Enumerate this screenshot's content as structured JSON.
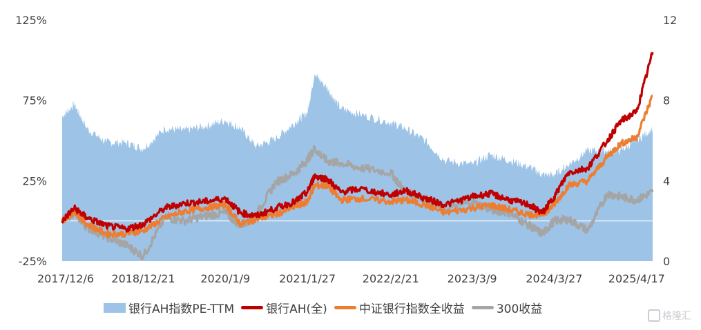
{
  "chart_data": {
    "type": "line",
    "title": "",
    "y_left_ticks": [
      "125%",
      "75%",
      "25%",
      "-25%"
    ],
    "y_left_range": [
      -25,
      125
    ],
    "y_right_ticks": [
      "12",
      "8",
      "4",
      "0"
    ],
    "y_right_range": [
      0,
      12
    ],
    "x_tick_labels": [
      "2017/12/6",
      "2018/12/21",
      "2020/1/9",
      "2021/1/27",
      "2022/2/21",
      "2023/3/9",
      "2024/3/27",
      "2025/4/17"
    ],
    "legend_position": "bottom",
    "series": [
      {
        "name": "银行AH指数PE-TTM",
        "kind": "area",
        "axis": "right",
        "color": "#9dc3e6",
        "points": [
          [
            "2017/12/6",
            7.2
          ],
          [
            "2018/2/1",
            7.8
          ],
          [
            "2018/4/1",
            6.6
          ],
          [
            "2018/7/1",
            5.9
          ],
          [
            "2018/10/1",
            5.9
          ],
          [
            "2018/12/21",
            5.6
          ],
          [
            "2019/4/1",
            6.6
          ],
          [
            "2019/7/1",
            6.5
          ],
          [
            "2019/10/1",
            6.7
          ],
          [
            "2020/1/9",
            7.0
          ],
          [
            "2020/3/20",
            6.6
          ],
          [
            "2020/6/1",
            5.7
          ],
          [
            "2020/9/1",
            6.1
          ],
          [
            "2020/12/1",
            6.9
          ],
          [
            "2021/1/27",
            7.4
          ],
          [
            "2021/3/1",
            9.3
          ],
          [
            "2021/5/1",
            8.6
          ],
          [
            "2021/7/1",
            7.6
          ],
          [
            "2021/10/1",
            7.3
          ],
          [
            "2022/2/21",
            6.9
          ],
          [
            "2022/5/1",
            6.6
          ],
          [
            "2022/8/1",
            6.0
          ],
          [
            "2022/11/1",
            5.0
          ],
          [
            "2023/3/9",
            4.8
          ],
          [
            "2023/6/1",
            5.3
          ],
          [
            "2023/9/1",
            5.0
          ],
          [
            "2023/12/1",
            4.7
          ],
          [
            "2024/2/1",
            4.3
          ],
          [
            "2024/3/27",
            4.3
          ],
          [
            "2024/6/1",
            4.8
          ],
          [
            "2024/9/1",
            5.5
          ],
          [
            "2024/12/1",
            5.5
          ],
          [
            "2025/2/1",
            5.5
          ],
          [
            "2025/4/17",
            6.0
          ],
          [
            "2025/7/1",
            6.6
          ]
        ]
      },
      {
        "name": "银行AH(全)",
        "kind": "line",
        "axis": "left",
        "color": "#c00000",
        "points": [
          [
            "2017/12/6",
            0
          ],
          [
            "2018/2/1",
            8
          ],
          [
            "2018/4/1",
            2
          ],
          [
            "2018/7/1",
            -3
          ],
          [
            "2018/10/1",
            -5
          ],
          [
            "2018/12/21",
            -2
          ],
          [
            "2019/4/1",
            8
          ],
          [
            "2019/7/1",
            11
          ],
          [
            "2019/10/1",
            12
          ],
          [
            "2020/1/9",
            14
          ],
          [
            "2020/3/20",
            5
          ],
          [
            "2020/6/1",
            3
          ],
          [
            "2020/9/1",
            8
          ],
          [
            "2020/12/1",
            12
          ],
          [
            "2021/1/27",
            18
          ],
          [
            "2021/3/1",
            28
          ],
          [
            "2021/5/1",
            26
          ],
          [
            "2021/7/1",
            18
          ],
          [
            "2021/10/1",
            20
          ],
          [
            "2022/2/21",
            16
          ],
          [
            "2022/5/1",
            19
          ],
          [
            "2022/8/1",
            14
          ],
          [
            "2022/11/1",
            10
          ],
          [
            "2023/3/9",
            15
          ],
          [
            "2023/6/1",
            17
          ],
          [
            "2023/9/1",
            13
          ],
          [
            "2023/12/1",
            10
          ],
          [
            "2024/2/1",
            5
          ],
          [
            "2024/3/27",
            15
          ],
          [
            "2024/6/1",
            30
          ],
          [
            "2024/9/1",
            33
          ],
          [
            "2024/12/1",
            50
          ],
          [
            "2025/2/1",
            62
          ],
          [
            "2025/4/17",
            68
          ],
          [
            "2025/7/1",
            105
          ]
        ]
      },
      {
        "name": "中证银行指数全收益",
        "kind": "line",
        "axis": "left",
        "color": "#ed7d31",
        "points": [
          [
            "2017/12/6",
            0
          ],
          [
            "2018/2/1",
            6
          ],
          [
            "2018/4/1",
            -2
          ],
          [
            "2018/7/1",
            -8
          ],
          [
            "2018/10/1",
            -8
          ],
          [
            "2018/12/21",
            -6
          ],
          [
            "2019/4/1",
            2
          ],
          [
            "2019/7/1",
            6
          ],
          [
            "2019/10/1",
            8
          ],
          [
            "2020/1/9",
            10
          ],
          [
            "2020/3/20",
            -2
          ],
          [
            "2020/6/1",
            1
          ],
          [
            "2020/9/1",
            4
          ],
          [
            "2020/12/1",
            9
          ],
          [
            "2021/1/27",
            12
          ],
          [
            "2021/3/1",
            22
          ],
          [
            "2021/5/1",
            22
          ],
          [
            "2021/7/1",
            13
          ],
          [
            "2021/10/1",
            14
          ],
          [
            "2022/2/21",
            12
          ],
          [
            "2022/5/1",
            13
          ],
          [
            "2022/8/1",
            10
          ],
          [
            "2022/11/1",
            5
          ],
          [
            "2023/3/9",
            8
          ],
          [
            "2023/6/1",
            10
          ],
          [
            "2023/9/1",
            7
          ],
          [
            "2023/12/1",
            4
          ],
          [
            "2024/2/1",
            4
          ],
          [
            "2024/3/27",
            10
          ],
          [
            "2024/6/1",
            22
          ],
          [
            "2024/9/1",
            25
          ],
          [
            "2024/12/1",
            40
          ],
          [
            "2025/2/1",
            48
          ],
          [
            "2025/4/17",
            52
          ],
          [
            "2025/7/1",
            78
          ]
        ]
      },
      {
        "name": "300收益",
        "kind": "line",
        "axis": "left",
        "color": "#a5a5a5",
        "points": [
          [
            "2017/12/6",
            0
          ],
          [
            "2018/2/1",
            5
          ],
          [
            "2018/4/1",
            -4
          ],
          [
            "2018/7/1",
            -10
          ],
          [
            "2018/10/1",
            -15
          ],
          [
            "2018/12/21",
            -22
          ],
          [
            "2019/4/1",
            2
          ],
          [
            "2019/7/1",
            0
          ],
          [
            "2019/10/1",
            3
          ],
          [
            "2020/1/9",
            5
          ],
          [
            "2020/3/20",
            -3
          ],
          [
            "2020/6/1",
            4
          ],
          [
            "2020/9/1",
            24
          ],
          [
            "2020/12/1",
            30
          ],
          [
            "2021/1/27",
            38
          ],
          [
            "2021/3/1",
            45
          ],
          [
            "2021/5/1",
            37
          ],
          [
            "2021/7/1",
            36
          ],
          [
            "2021/10/1",
            33
          ],
          [
            "2022/2/21",
            30
          ],
          [
            "2022/5/1",
            18
          ],
          [
            "2022/8/1",
            14
          ],
          [
            "2022/11/1",
            7
          ],
          [
            "2023/3/9",
            12
          ],
          [
            "2023/6/1",
            7
          ],
          [
            "2023/9/1",
            5
          ],
          [
            "2023/12/1",
            -3
          ],
          [
            "2024/2/1",
            -8
          ],
          [
            "2024/3/27",
            0
          ],
          [
            "2024/6/1",
            1
          ],
          [
            "2024/9/1",
            -6
          ],
          [
            "2024/12/1",
            17
          ],
          [
            "2025/2/1",
            15
          ],
          [
            "2025/4/17",
            13
          ],
          [
            "2025/7/1",
            18
          ]
        ]
      }
    ]
  },
  "watermark": "格隆汇"
}
